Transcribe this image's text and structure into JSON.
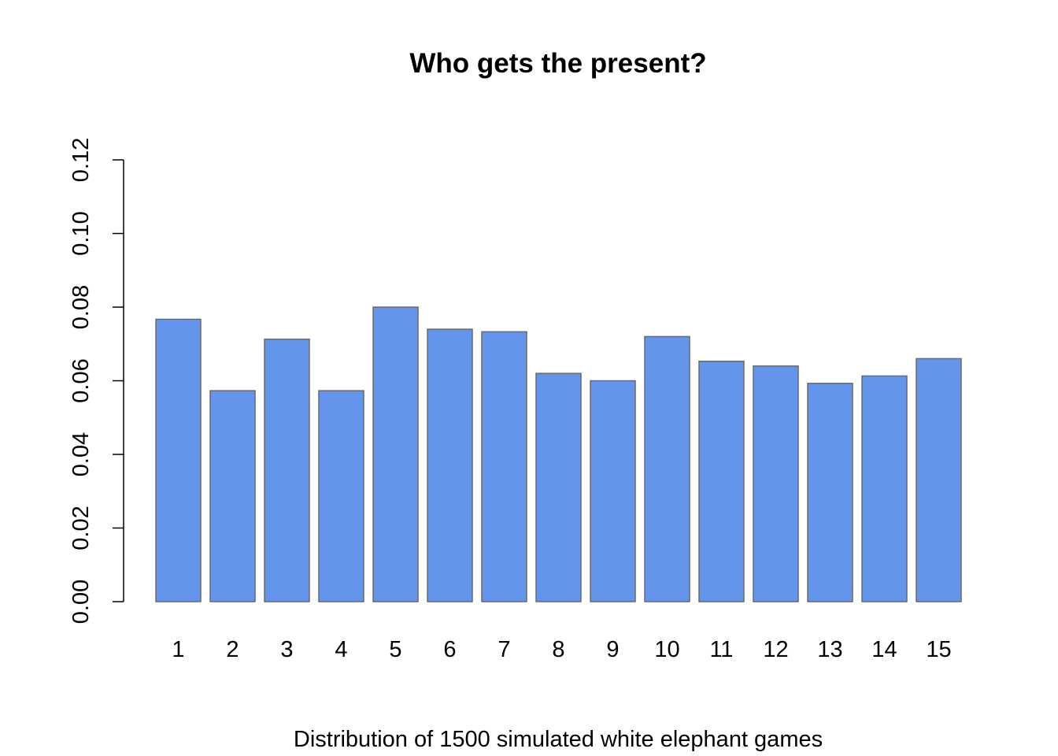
{
  "chart_data": {
    "type": "bar",
    "title": "Who gets the present?",
    "xlabel": "Distribution of 1500 simulated white elephant games",
    "ylabel": "",
    "categories": [
      "1",
      "2",
      "3",
      "4",
      "5",
      "6",
      "7",
      "8",
      "9",
      "10",
      "11",
      "12",
      "13",
      "14",
      "15"
    ],
    "values": [
      0.0767,
      0.0573,
      0.0713,
      0.0573,
      0.08,
      0.074,
      0.0733,
      0.062,
      0.06,
      0.072,
      0.0653,
      0.064,
      0.0593,
      0.0613,
      0.066
    ],
    "ylim": [
      0,
      0.12
    ],
    "yticks": [
      "0.00",
      "0.02",
      "0.04",
      "0.06",
      "0.08",
      "0.10",
      "0.12"
    ],
    "bar_color": "#6495ED",
    "bar_border_color": "#6a6a6a",
    "grid": false,
    "legend": "none"
  }
}
